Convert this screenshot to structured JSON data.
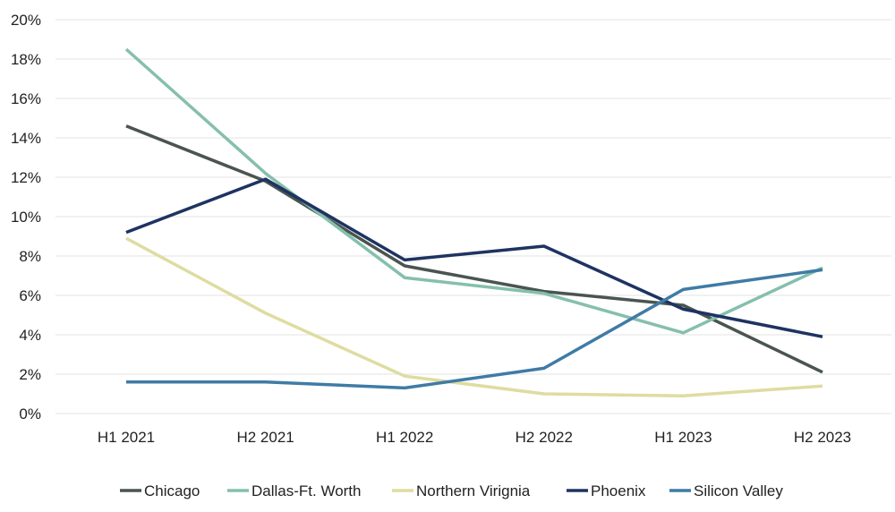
{
  "chart_data": {
    "type": "line",
    "title": "",
    "xlabel": "",
    "ylabel": "",
    "categories": [
      "H1 2021",
      "H2 2021",
      "H1 2022",
      "H2 2022",
      "H1 2023",
      "H2 2023"
    ],
    "y_ticks": [
      "0%",
      "2%",
      "4%",
      "6%",
      "8%",
      "10%",
      "12%",
      "14%",
      "16%",
      "18%",
      "20%"
    ],
    "ylim": [
      0,
      20
    ],
    "y_unit": "%",
    "grid": true,
    "legend_position": "bottom",
    "series": [
      {
        "name": "Chicago",
        "color": "#4a5550",
        "values": [
          14.6,
          11.8,
          7.5,
          6.2,
          5.5,
          2.1
        ]
      },
      {
        "name": "Dallas-Ft. Worth",
        "color": "#85bfad",
        "values": [
          18.5,
          12.2,
          6.9,
          6.1,
          4.1,
          7.4
        ]
      },
      {
        "name": "Northern Virignia",
        "color": "#dedca0",
        "values": [
          8.9,
          5.1,
          1.9,
          1.0,
          0.9,
          1.4
        ]
      },
      {
        "name": "Phoenix",
        "color": "#1e3361",
        "values": [
          9.2,
          11.9,
          7.8,
          8.5,
          5.3,
          3.9
        ]
      },
      {
        "name": "Silicon Valley",
        "color": "#3f7ba6",
        "values": [
          1.6,
          1.6,
          1.3,
          2.3,
          6.3,
          7.3
        ]
      }
    ]
  }
}
